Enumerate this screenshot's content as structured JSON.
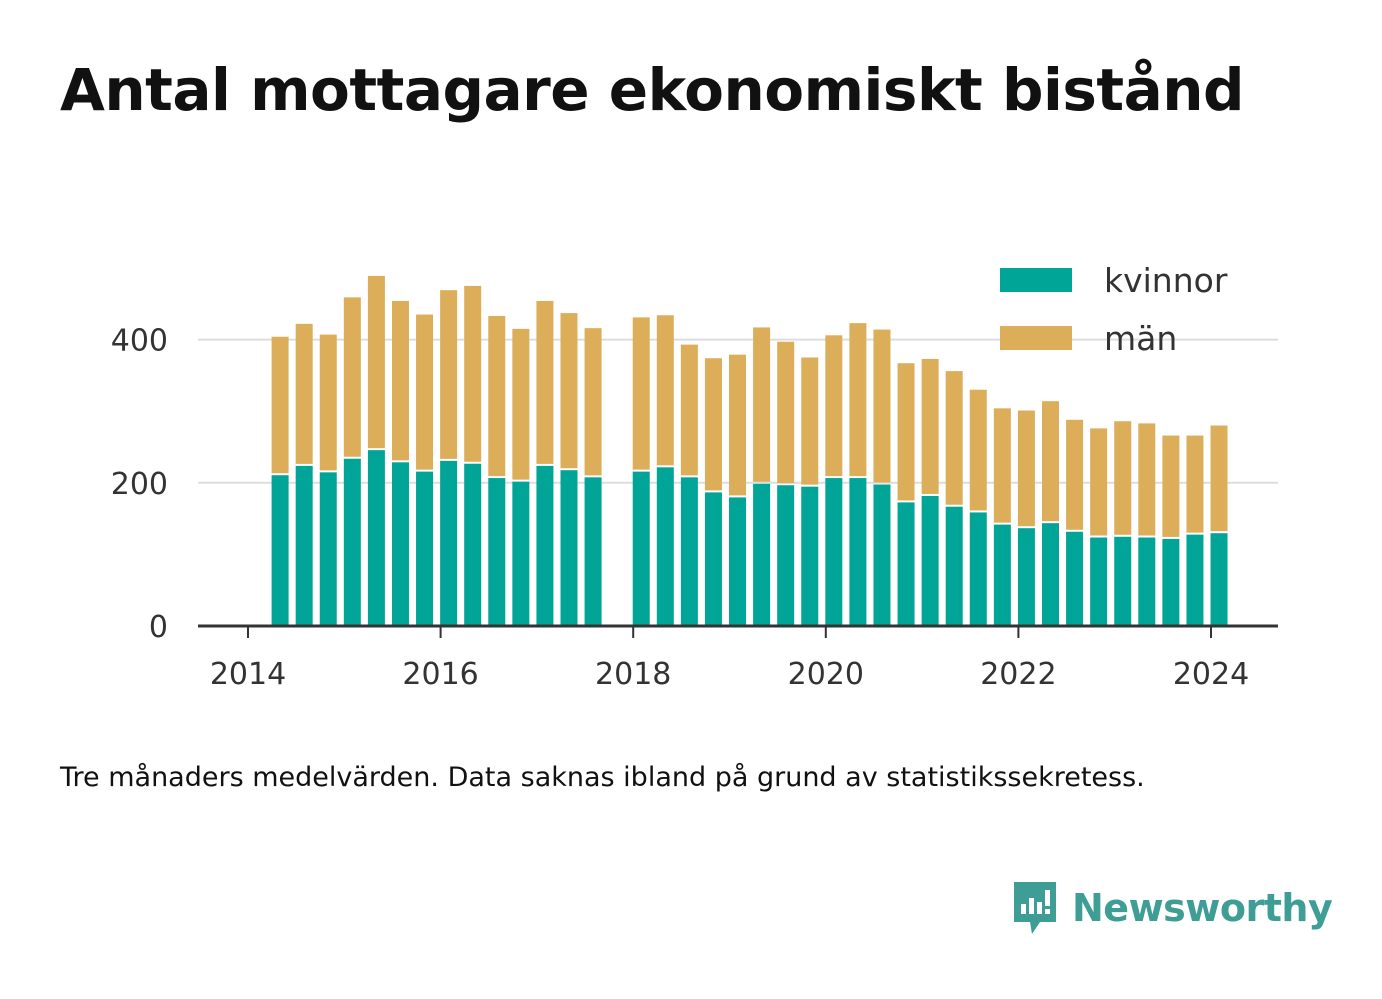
{
  "title": "Antal mottagare ekonomiskt bistånd",
  "note": "Tre månaders medelvärden. Data saknas ibland på grund av statistikssekretess.",
  "brand": {
    "name": "Newsworthy",
    "icon": "newsworthy-logo-icon"
  },
  "colors": {
    "kvinnor": "#00a598",
    "man": "#dcae5a",
    "axis": "#333333",
    "grid": "#dddddd"
  },
  "legend": {
    "placement": "top-right",
    "items": [
      "kvinnor",
      "män"
    ]
  },
  "chart_data": {
    "type": "bar",
    "stacked": true,
    "x_ticks": [
      "2014",
      "2016",
      "2018",
      "2020",
      "2022",
      "2024"
    ],
    "y_ticks": [
      "0",
      "200",
      "400"
    ],
    "ylim": [
      0,
      500
    ],
    "x_dates": [
      "2014-05",
      "2014-08",
      "2014-11",
      "2015-02",
      "2015-05",
      "2015-08",
      "2015-11",
      "2016-02",
      "2016-05",
      "2016-08",
      "2016-11",
      "2017-02",
      "2017-05",
      "2017-08",
      "2017-11",
      "2018-02",
      "2018-05",
      "2018-08",
      "2018-11",
      "2019-02",
      "2019-05",
      "2019-08",
      "2019-11",
      "2020-02",
      "2020-05",
      "2020-08",
      "2020-11",
      "2021-02",
      "2021-05",
      "2021-08",
      "2021-11",
      "2022-02",
      "2022-05",
      "2022-08",
      "2022-11",
      "2023-02",
      "2023-05",
      "2023-08",
      "2023-11",
      "2024-02"
    ],
    "series": [
      {
        "name": "kvinnor",
        "values": [
          212,
          225,
          216,
          235,
          247,
          230,
          217,
          232,
          228,
          208,
          203,
          225,
          219,
          209,
          null,
          217,
          223,
          209,
          188,
          181,
          200,
          198,
          196,
          208,
          208,
          199,
          174,
          183,
          168,
          160,
          143,
          138,
          145,
          133,
          125,
          126,
          125,
          123,
          129,
          131
        ]
      },
      {
        "name": "män",
        "values": [
          192,
          197,
          191,
          224,
          242,
          224,
          218,
          237,
          247,
          225,
          212,
          229,
          218,
          207,
          null,
          214,
          211,
          184,
          186,
          198,
          217,
          199,
          179,
          198,
          215,
          215,
          193,
          190,
          188,
          170,
          161,
          163,
          169,
          155,
          151,
          160,
          158,
          143,
          137,
          149
        ]
      }
    ]
  }
}
